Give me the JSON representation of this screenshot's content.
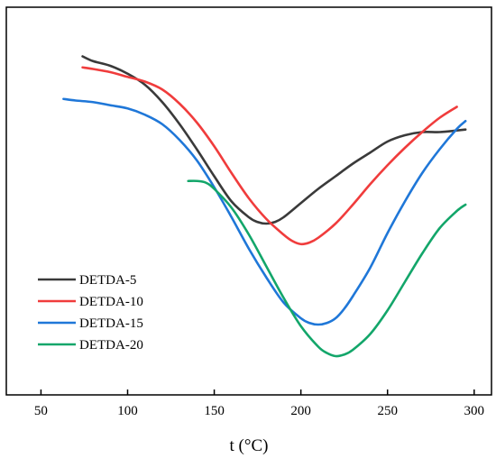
{
  "chart_data": {
    "type": "line",
    "title": "",
    "xlabel": "t (°C)",
    "ylabel": "",
    "xlim": [
      30,
      310
    ],
    "ylim": [
      0,
      100
    ],
    "xticks": [
      50,
      100,
      150,
      200,
      250,
      300
    ],
    "y_ticks_shown": false,
    "grid": false,
    "legend_position": "bottom-left",
    "series": [
      {
        "name": "DETDA-5",
        "color": "#3a3a3a",
        "x": [
          74,
          80,
          90,
          100,
          110,
          120,
          130,
          140,
          150,
          160,
          170,
          175,
          180,
          185,
          190,
          200,
          210,
          220,
          230,
          240,
          250,
          260,
          270,
          280,
          290,
          295
        ],
        "y": [
          95,
          93.5,
          92,
          89.5,
          86,
          80.5,
          73.5,
          65.5,
          57,
          49,
          44,
          42.5,
          42,
          42.5,
          44,
          48.5,
          53,
          57,
          61,
          64.5,
          68,
          70,
          71,
          71,
          71.5,
          71.8
        ]
      },
      {
        "name": "DETDA-10",
        "color": "#f03c3c",
        "x": [
          74,
          80,
          90,
          100,
          110,
          120,
          130,
          140,
          150,
          160,
          170,
          180,
          190,
          195,
          200,
          205,
          210,
          220,
          230,
          240,
          250,
          260,
          270,
          280,
          290
        ],
        "y": [
          91.5,
          91,
          90,
          88.5,
          87,
          84.5,
          80,
          74,
          66.5,
          58,
          50,
          43.5,
          38.5,
          36.5,
          35.5,
          36,
          37.5,
          42,
          48,
          54.5,
          60.5,
          66,
          71,
          75.5,
          79
        ]
      },
      {
        "name": "DETDA-15",
        "color": "#1f77d8",
        "x": [
          63,
          70,
          80,
          90,
          100,
          110,
          120,
          130,
          140,
          150,
          160,
          170,
          180,
          190,
          200,
          205,
          210,
          215,
          220,
          225,
          230,
          240,
          250,
          260,
          270,
          280,
          290,
          295
        ],
        "y": [
          81.5,
          81,
          80.5,
          79.5,
          78.5,
          76.5,
          73.5,
          68.5,
          62,
          53.5,
          44,
          34,
          25,
          17,
          12,
          10.5,
          10,
          10.5,
          12,
          15,
          19,
          28,
          39,
          49,
          58,
          65.5,
          72,
          74.5
        ]
      },
      {
        "name": "DETDA-20",
        "color": "#13a66a",
        "x": [
          135,
          140,
          145,
          150,
          160,
          170,
          180,
          190,
          200,
          210,
          215,
          220,
          225,
          230,
          240,
          250,
          260,
          270,
          280,
          290,
          295
        ],
        "y": [
          55.5,
          55.5,
          55,
          53,
          47,
          38.5,
          28.5,
          18.5,
          9.5,
          3,
          1,
          0,
          0.5,
          2,
          7,
          14.5,
          23.5,
          32.5,
          40.5,
          46,
          48
        ]
      }
    ]
  }
}
